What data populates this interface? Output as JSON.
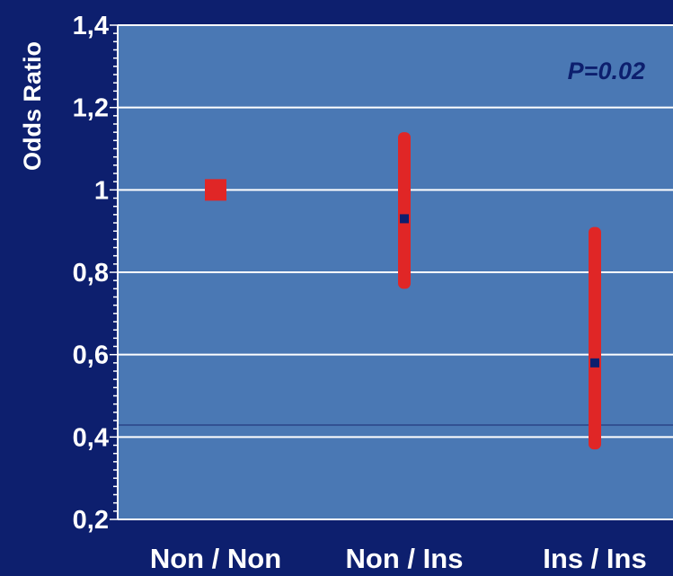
{
  "chart_data": {
    "type": "scatter",
    "ylabel": "Odds Ratio",
    "annotation": "P=0.02",
    "ylim": [
      0.2,
      1.4
    ],
    "yticks": [
      "0,2",
      "0,4",
      "0,6",
      "0,8",
      "1",
      "1,2",
      "1,4"
    ],
    "ytick_values": [
      0.2,
      0.4,
      0.6,
      0.8,
      1.0,
      1.2,
      1.4
    ],
    "categories": [
      "Non / Non",
      "Non / Ins",
      "Ins / Ins"
    ],
    "points": [
      {
        "category": "Non / Non",
        "or": 1.0,
        "ci_low": null,
        "ci_high": null,
        "reference": true
      },
      {
        "category": "Non / Ins",
        "or": 0.93,
        "ci_low": 0.76,
        "ci_high": 1.14
      },
      {
        "category": "Ins / Ins",
        "or": 0.58,
        "ci_low": 0.37,
        "ci_high": 0.91
      }
    ],
    "grid": true,
    "colors": {
      "background": "#0d1f6e",
      "plot_area": "#4a78b4",
      "ci_bar": "#e02626",
      "point": "#0d1f6e",
      "reference_marker": "#e02626",
      "text": "#ffffff"
    }
  }
}
